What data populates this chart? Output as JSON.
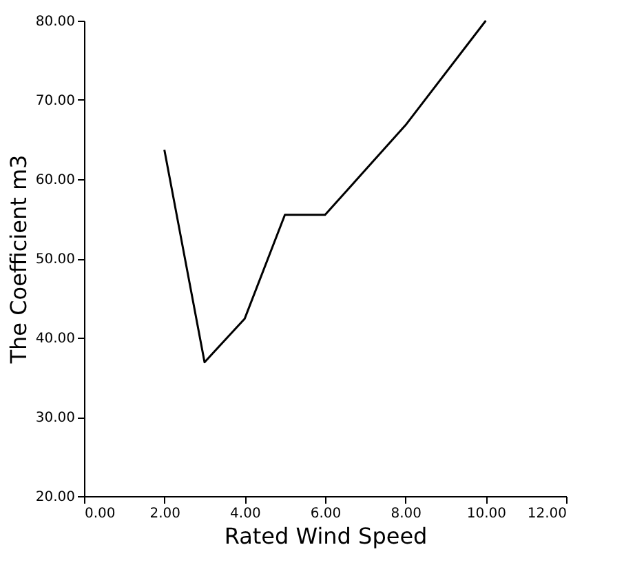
{
  "chart_data": {
    "type": "line",
    "xlabel": "Rated Wind Speed",
    "ylabel": "The Coefficient m3",
    "x": [
      2,
      3,
      4,
      5,
      6,
      8,
      10
    ],
    "series": [
      {
        "color": "#000000",
        "values": [
          63.7,
          36.9,
          42.4,
          55.5,
          55.5,
          66.8,
          80
        ]
      }
    ],
    "xlim": [
      0,
      12
    ],
    "ylim": [
      20,
      80
    ],
    "xticks": [
      {
        "value": 0,
        "label": "0.00"
      },
      {
        "value": 2,
        "label": "2.00"
      },
      {
        "value": 4,
        "label": "4.00"
      },
      {
        "value": 6,
        "label": "6.00"
      },
      {
        "value": 8,
        "label": "8.00"
      },
      {
        "value": 10,
        "label": "10.00"
      },
      {
        "value": 12,
        "label": "12.00"
      }
    ],
    "yticks": [
      {
        "value": 20,
        "label": "20.00"
      },
      {
        "value": 30,
        "label": "30.00"
      },
      {
        "value": 40,
        "label": "40.00"
      },
      {
        "value": 50,
        "label": "50.00"
      },
      {
        "value": 60,
        "label": "60.00"
      },
      {
        "value": 70,
        "label": "70.00"
      },
      {
        "value": 80,
        "label": "80.00"
      }
    ],
    "grid": false,
    "legend": false,
    "marker": "none",
    "line_style": "solid"
  }
}
